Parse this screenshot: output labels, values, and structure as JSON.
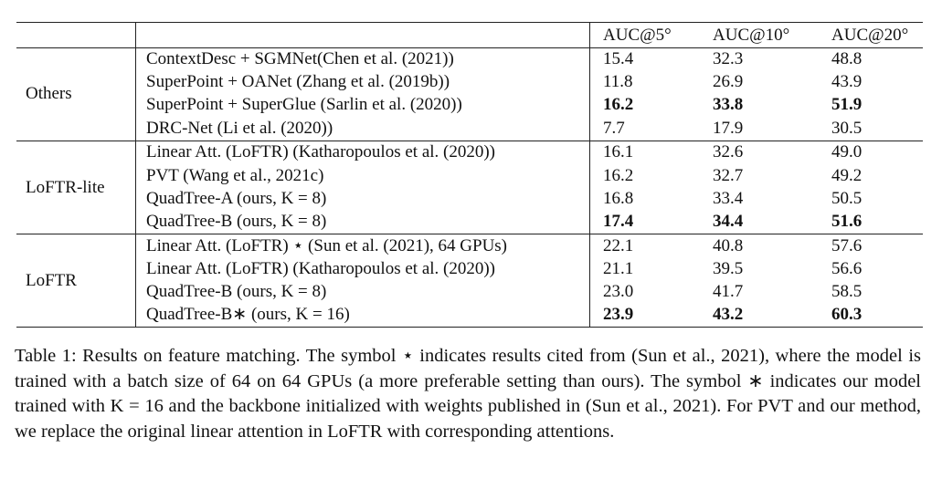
{
  "table": {
    "columns": [
      "AUC@5°",
      "AUC@10°",
      "AUC@20°"
    ],
    "groups": [
      {
        "name": "Others",
        "rows": [
          {
            "method": "ContextDesc + SGMNet(Chen et al. (2021))",
            "values": [
              "15.4",
              "32.3",
              "48.8"
            ]
          },
          {
            "method": "SuperPoint + OANet (Zhang et al. (2019b))",
            "values": [
              "11.8",
              "26.9",
              "43.9"
            ]
          },
          {
            "method": "SuperPoint + SuperGlue (Sarlin et al. (2020))",
            "values": [
              "16.2",
              "33.8",
              "51.9"
            ],
            "bold": true
          },
          {
            "method": "DRC-Net (Li et al. (2020))",
            "values": [
              "7.7",
              "17.9",
              "30.5"
            ]
          }
        ]
      },
      {
        "name": "LoFTR-lite",
        "rows": [
          {
            "method": "Linear Att. (LoFTR) (Katharopoulos et al. (2020))",
            "values": [
              "16.1",
              "32.6",
              "49.0"
            ]
          },
          {
            "method": "PVT  (Wang et al., 2021c)",
            "values": [
              "16.2",
              "32.7",
              "49.2"
            ]
          },
          {
            "method": "QuadTree-A (ours, K = 8)",
            "values": [
              "16.8",
              "33.4",
              "50.5"
            ]
          },
          {
            "method": "QuadTree-B (ours, K = 8)",
            "values": [
              "17.4",
              "34.4",
              "51.6"
            ],
            "bold": true
          }
        ]
      },
      {
        "name": "LoFTR",
        "rows": [
          {
            "method": "Linear Att. (LoFTR) ⋆ (Sun et al. (2021), 64 GPUs)",
            "values": [
              "22.1",
              "40.8",
              "57.6"
            ]
          },
          {
            "method": "Linear Att. (LoFTR) (Katharopoulos et al. (2020))",
            "values": [
              "21.1",
              "39.5",
              "56.6"
            ]
          },
          {
            "method": "QuadTree-B (ours, K = 8)",
            "values": [
              "23.0",
              "41.7",
              "58.5"
            ]
          },
          {
            "method": "QuadTree-B∗ (ours, K = 16)",
            "values": [
              "23.9",
              "43.2",
              "60.3"
            ],
            "bold": true
          }
        ]
      }
    ],
    "caption": "Table 1: Results on feature matching. The symbol ⋆ indicates results cited from  (Sun et al., 2021), where the model is trained with a batch size of 64 on 64 GPUs (a more preferable setting than ours). The symbol ∗ indicates our model trained with K = 16 and the backbone initialized with weights published in  (Sun et al., 2021). For PVT and our method, we replace the original linear attention in LoFTR with corresponding attentions."
  }
}
